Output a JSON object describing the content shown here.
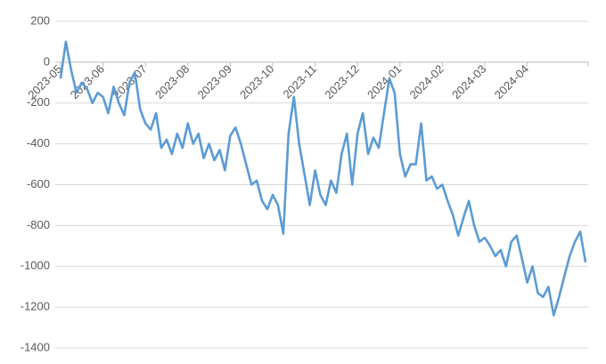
{
  "chart_data": {
    "type": "line",
    "categories": [
      "2023-05",
      null,
      null,
      null,
      null,
      null,
      null,
      null,
      "2023-06",
      null,
      null,
      null,
      null,
      null,
      null,
      null,
      "2023-07",
      null,
      null,
      null,
      null,
      null,
      null,
      null,
      "2023-08",
      null,
      null,
      null,
      null,
      null,
      null,
      null,
      "2023-09",
      null,
      null,
      null,
      null,
      null,
      null,
      null,
      "2023-10",
      null,
      null,
      null,
      null,
      null,
      null,
      null,
      "2023-11",
      null,
      null,
      null,
      null,
      null,
      null,
      null,
      "2023-12",
      null,
      null,
      null,
      null,
      null,
      null,
      null,
      "2024-01",
      null,
      null,
      null,
      null,
      null,
      null,
      null,
      "2024-02",
      null,
      null,
      null,
      null,
      null,
      null,
      null,
      "2024-03",
      null,
      null,
      null,
      null,
      null,
      null,
      null,
      "2024-04",
      null,
      null,
      null,
      null,
      null,
      null,
      null,
      null,
      null,
      null,
      null
    ],
    "series": [
      {
        "color": "#5b9bd5",
        "values": [
          -80,
          100,
          -40,
          -150,
          -100,
          -130,
          -200,
          -150,
          -170,
          -250,
          -120,
          -200,
          -260,
          -100,
          -50,
          -230,
          -300,
          -330,
          -250,
          -420,
          -380,
          -450,
          -350,
          -420,
          -300,
          -400,
          -350,
          -470,
          -400,
          -480,
          -430,
          -530,
          -360,
          -320,
          -400,
          -500,
          -600,
          -580,
          -680,
          -720,
          -650,
          -700,
          -840,
          -350,
          -170,
          -400,
          -550,
          -700,
          -530,
          -650,
          -700,
          -580,
          -640,
          -450,
          -350,
          -600,
          -350,
          -250,
          -450,
          -370,
          -420,
          -250,
          -80,
          -150,
          -450,
          -560,
          -500,
          -500,
          -300,
          -580,
          -560,
          -620,
          -600,
          -680,
          -750,
          -850,
          -760,
          -680,
          -800,
          -880,
          -860,
          -900,
          -950,
          -920,
          -1000,
          -880,
          -850,
          -960,
          -1080,
          -1000,
          -1130,
          -1150,
          -1100,
          -1240,
          -1150,
          -1050,
          -950,
          -880,
          -830,
          -980
        ]
      }
    ],
    "ylim": [
      -1400,
      200
    ],
    "yticks": [
      -1400,
      -1200,
      -1000,
      -800,
      -600,
      -400,
      -200,
      0,
      200
    ],
    "grid": true
  }
}
